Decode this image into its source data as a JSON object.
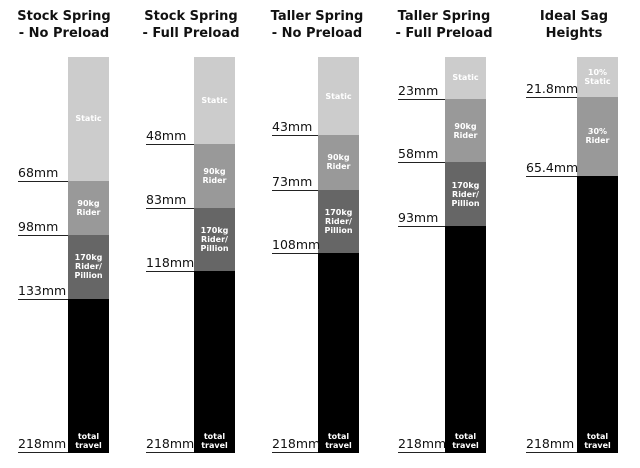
{
  "columns": [
    {
      "title": [
        "Stock Spring",
        "- No Preload"
      ],
      "segments": [
        {
          "mm": 68,
          "label": [
            "Static"
          ],
          "color": "#cccccc"
        },
        {
          "mm": 30,
          "label": [
            "90kg",
            "Rider"
          ],
          "color": "#999999"
        },
        {
          "mm": 35,
          "label": [
            "170kg",
            "Rider/",
            "Pillion"
          ],
          "color": "#666666"
        }
      ],
      "markers": [
        "68mm",
        "98mm",
        "133mm",
        "218mm"
      ],
      "travel_label": [
        "total",
        "travel"
      ]
    },
    {
      "title": [
        "Stock Spring",
        "- Full Preload"
      ],
      "segments": [
        {
          "mm": 48,
          "label": [
            "Static"
          ],
          "color": "#cccccc"
        },
        {
          "mm": 35,
          "label": [
            "90kg",
            "Rider"
          ],
          "color": "#999999"
        },
        {
          "mm": 35,
          "label": [
            "170kg",
            "Rider/",
            "Pillion"
          ],
          "color": "#666666"
        }
      ],
      "markers": [
        "48mm",
        "83mm",
        "118mm",
        "218mm"
      ],
      "travel_label": [
        "total",
        "travel"
      ]
    },
    {
      "title": [
        "Taller Spring",
        "- No Preload"
      ],
      "segments": [
        {
          "mm": 43,
          "label": [
            "Static"
          ],
          "color": "#cccccc"
        },
        {
          "mm": 30,
          "label": [
            "90kg",
            "Rider"
          ],
          "color": "#999999"
        },
        {
          "mm": 35,
          "label": [
            "170kg",
            "Rider/",
            "Pillion"
          ],
          "color": "#666666"
        }
      ],
      "markers": [
        "43mm",
        "73mm",
        "108mm",
        "218mm"
      ],
      "travel_label": [
        "total",
        "travel"
      ]
    },
    {
      "title": [
        "Taller Spring",
        "- Full Preload"
      ],
      "segments": [
        {
          "mm": 23,
          "label": [
            "Static"
          ],
          "color": "#cccccc"
        },
        {
          "mm": 35,
          "label": [
            "90kg",
            "Rider"
          ],
          "color": "#999999"
        },
        {
          "mm": 35,
          "label": [
            "170kg",
            "Rider/",
            "Pillion"
          ],
          "color": "#666666"
        }
      ],
      "markers": [
        "23mm",
        "58mm",
        "93mm",
        "218mm"
      ],
      "travel_label": [
        "total",
        "travel"
      ]
    },
    {
      "title": [
        "Ideal Sag",
        "Heights"
      ],
      "segments": [
        {
          "mm": 21.8,
          "label": [
            "10%",
            "Static"
          ],
          "color": "#cccccc"
        },
        {
          "mm": 43.6,
          "label": [
            "30%",
            "Rider"
          ],
          "color": "#999999"
        }
      ],
      "markers": [
        "21.8mm",
        "65.4mm",
        "218mm"
      ],
      "travel_label": [
        "total",
        "travel"
      ]
    }
  ],
  "total_travel_mm": 218,
  "travel_color": "#000000"
}
